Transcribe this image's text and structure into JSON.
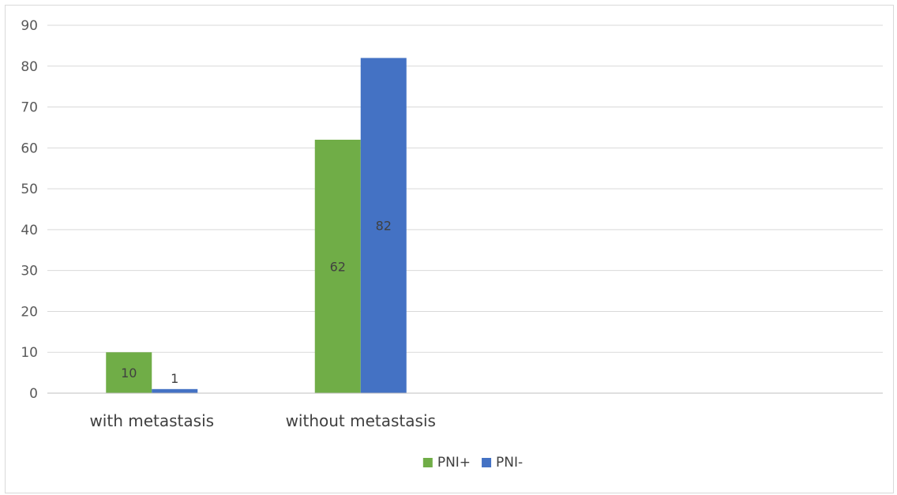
{
  "chart_data": {
    "type": "bar",
    "title": "",
    "xlabel": "",
    "ylabel": "",
    "categories": [
      "with metastasis",
      "without metastasis",
      "",
      ""
    ],
    "series": [
      {
        "name": "PNI+",
        "values": [
          10,
          62,
          null,
          null
        ],
        "color": "#70ad47"
      },
      {
        "name": "PNI-",
        "values": [
          1,
          82,
          null,
          null
        ],
        "color": "#4472c4"
      }
    ],
    "ylim": [
      0,
      90
    ],
    "yticks": [
      0,
      10,
      20,
      30,
      40,
      50,
      60,
      70,
      80,
      90
    ],
    "grid": true,
    "data_labels": true,
    "legend_position": "bottom",
    "gridline_color": "#d9d9d9",
    "axis_color": "#bfbfbf"
  }
}
